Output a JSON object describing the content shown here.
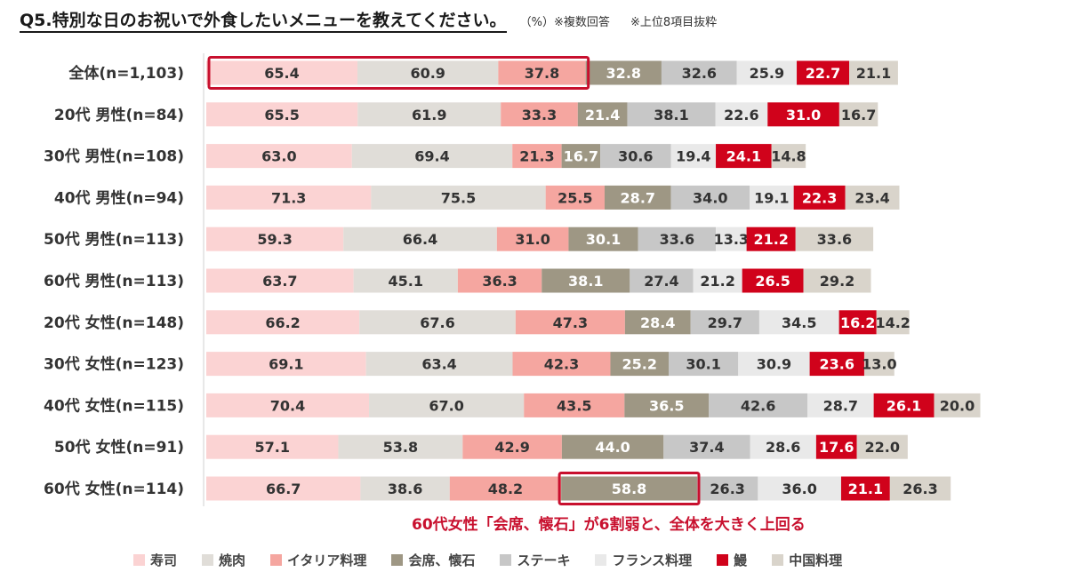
{
  "header": {
    "title": "Q5.特別な日のお祝いで外食したいメニューを教えてください。",
    "note1": "（%）※複数回答",
    "note2": "※上位8項目抜粋"
  },
  "callout": "60代女性「会席、懐石」が6割弱と、全体を大きく上回る",
  "colors": {
    "寿司": "#fbd3d3",
    "焼肉": "#e0ddd8",
    "イタリア料理": "#f5a6a0",
    "会席、懐石": "#9e9784",
    "ステーキ": "#c7c7c7",
    "フランス料理": "#e9e9e9",
    "鰻": "#d0021b",
    "中国料理": "#d9d4cb",
    "highlight": "#c8102e"
  },
  "chart_data": {
    "type": "bar",
    "orientation": "horizontal",
    "stacked": true,
    "categories": [
      "全体(n=1,103)",
      "20代 男性(n=84)",
      "30代 男性(n=108)",
      "40代 男性(n=94)",
      "50代 男性(n=113)",
      "60代 男性(n=113)",
      "20代 女性(n=148)",
      "30代 女性(n=123)",
      "40代 女性(n=115)",
      "50代 女性(n=91)",
      "60代 女性(n=114)"
    ],
    "series": [
      {
        "name": "寿司",
        "values": [
          65.4,
          65.5,
          63.0,
          71.3,
          59.3,
          63.7,
          66.2,
          69.1,
          70.4,
          57.1,
          66.7
        ]
      },
      {
        "name": "焼肉",
        "values": [
          60.9,
          61.9,
          69.4,
          75.5,
          66.4,
          45.1,
          67.6,
          63.4,
          67.0,
          53.8,
          38.6
        ]
      },
      {
        "name": "イタリア料理",
        "values": [
          37.8,
          33.3,
          21.3,
          25.5,
          31.0,
          36.3,
          47.3,
          42.3,
          43.5,
          42.9,
          48.2
        ]
      },
      {
        "name": "会席、懐石",
        "values": [
          32.8,
          21.4,
          16.7,
          28.7,
          30.1,
          38.1,
          28.4,
          25.2,
          36.5,
          44.0,
          58.8
        ]
      },
      {
        "name": "ステーキ",
        "values": [
          32.6,
          38.1,
          30.6,
          34.0,
          33.6,
          27.4,
          29.7,
          30.1,
          42.6,
          37.4,
          26.3
        ]
      },
      {
        "name": "フランス料理",
        "values": [
          25.9,
          22.6,
          19.4,
          19.1,
          13.3,
          21.2,
          34.5,
          30.9,
          28.7,
          28.6,
          36.0
        ]
      },
      {
        "name": "鰻",
        "values": [
          22.7,
          31.0,
          24.1,
          22.3,
          21.2,
          26.5,
          16.2,
          23.6,
          26.1,
          17.6,
          21.1
        ]
      },
      {
        "name": "中国料理",
        "values": [
          21.1,
          16.7,
          14.8,
          23.4,
          33.6,
          29.2,
          14.2,
          13.0,
          20.0,
          22.0,
          26.3
        ]
      }
    ],
    "labels_inside": true,
    "grid": false,
    "legend_position": "bottom"
  },
  "legend": [
    "寿司",
    "焼肉",
    "イタリア料理",
    "会席、懐石",
    "ステーキ",
    "フランス料理",
    "鰻",
    "中国料理"
  ]
}
